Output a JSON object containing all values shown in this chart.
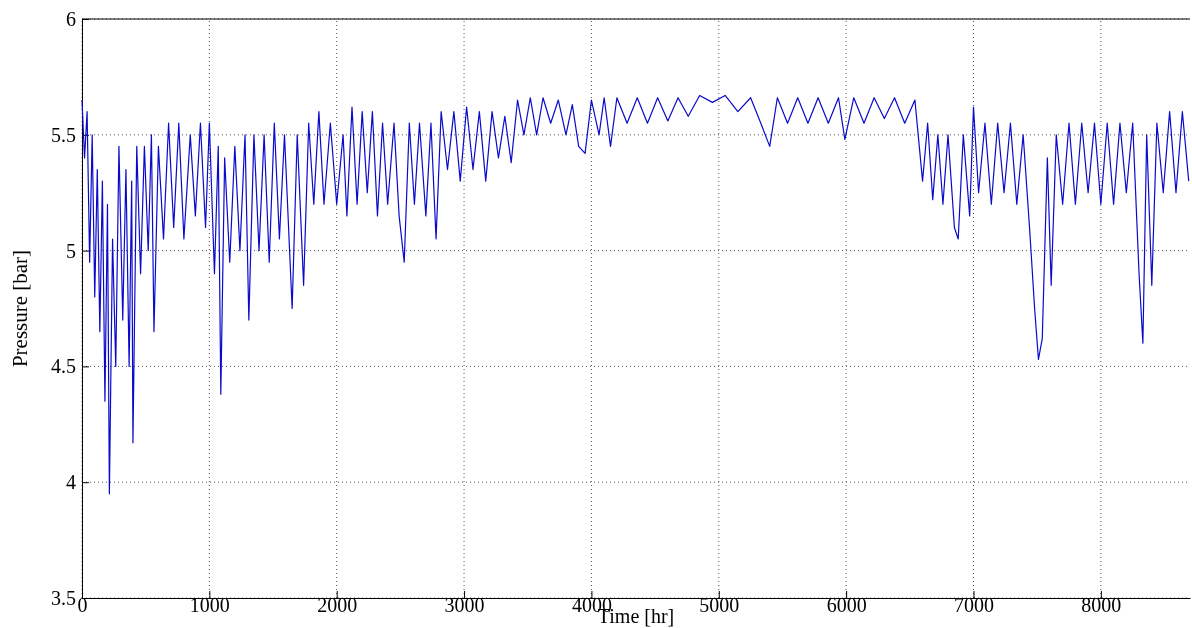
{
  "chart_data": {
    "type": "line",
    "xlabel": "Time [hr]",
    "ylabel": "Pressure [bar]",
    "xlim": [
      0,
      8700
    ],
    "xticks": [
      0,
      1000,
      2000,
      3000,
      4000,
      5000,
      6000,
      7000,
      8000
    ],
    "ylim": [
      3.5,
      6
    ],
    "yticks": [
      3.5,
      4,
      4.5,
      5,
      5.5,
      6
    ],
    "grid": true,
    "line_style": "solid",
    "series": [
      {
        "color": "#0a0acc",
        "x": [
          0,
          20,
          40,
          60,
          80,
          100,
          120,
          140,
          160,
          180,
          200,
          215,
          240,
          265,
          290,
          320,
          345,
          370,
          390,
          400,
          430,
          460,
          490,
          520,
          545,
          565,
          600,
          640,
          680,
          720,
          760,
          800,
          850,
          890,
          930,
          970,
          1000,
          1040,
          1070,
          1090,
          1120,
          1160,
          1200,
          1240,
          1280,
          1310,
          1350,
          1390,
          1430,
          1470,
          1510,
          1550,
          1590,
          1650,
          1690,
          1740,
          1780,
          1820,
          1860,
          1900,
          1950,
          2000,
          2050,
          2080,
          2120,
          2160,
          2200,
          2240,
          2280,
          2320,
          2360,
          2400,
          2450,
          2490,
          2530,
          2570,
          2610,
          2650,
          2700,
          2740,
          2780,
          2820,
          2870,
          2920,
          2970,
          3020,
          3070,
          3120,
          3170,
          3220,
          3270,
          3320,
          3370,
          3420,
          3470,
          3520,
          3570,
          3620,
          3680,
          3740,
          3800,
          3850,
          3900,
          3950,
          4000,
          4060,
          4100,
          4150,
          4200,
          4280,
          4360,
          4440,
          4520,
          4600,
          4680,
          4760,
          4850,
          4950,
          5050,
          5150,
          5250,
          5330,
          5400,
          5460,
          5540,
          5620,
          5700,
          5780,
          5860,
          5940,
          5990,
          6060,
          6140,
          6220,
          6300,
          6380,
          6460,
          6540,
          6600,
          6640,
          6680,
          6720,
          6760,
          6800,
          6850,
          6880,
          6920,
          6970,
          7000,
          7040,
          7090,
          7140,
          7190,
          7240,
          7290,
          7340,
          7390,
          7440,
          7480,
          7510,
          7540,
          7580,
          7610,
          7650,
          7700,
          7750,
          7800,
          7850,
          7900,
          7950,
          8000,
          8050,
          8100,
          8150,
          8200,
          8250,
          8300,
          8330,
          8360,
          8400,
          8440,
          8490,
          8540,
          8590,
          8640,
          8690
        ],
        "values": [
          5.65,
          5.4,
          5.6,
          4.95,
          5.5,
          4.8,
          5.35,
          4.65,
          5.3,
          4.35,
          5.2,
          3.95,
          5.05,
          4.5,
          5.45,
          4.7,
          5.35,
          4.5,
          5.3,
          4.17,
          5.45,
          4.9,
          5.45,
          5.0,
          5.5,
          4.65,
          5.45,
          5.05,
          5.55,
          5.1,
          5.55,
          5.05,
          5.5,
          5.15,
          5.55,
          5.1,
          5.55,
          4.9,
          5.45,
          4.38,
          5.4,
          4.95,
          5.45,
          5.0,
          5.5,
          4.7,
          5.5,
          5.0,
          5.5,
          4.95,
          5.55,
          5.05,
          5.5,
          4.75,
          5.5,
          4.85,
          5.55,
          5.2,
          5.6,
          5.2,
          5.55,
          5.2,
          5.5,
          5.15,
          5.62,
          5.2,
          5.6,
          5.25,
          5.6,
          5.15,
          5.55,
          5.2,
          5.55,
          5.15,
          4.95,
          5.55,
          5.2,
          5.55,
          5.15,
          5.55,
          5.05,
          5.6,
          5.35,
          5.6,
          5.3,
          5.62,
          5.35,
          5.6,
          5.3,
          5.6,
          5.4,
          5.58,
          5.38,
          5.65,
          5.5,
          5.66,
          5.5,
          5.66,
          5.55,
          5.65,
          5.5,
          5.63,
          5.45,
          5.42,
          5.65,
          5.5,
          5.66,
          5.45,
          5.66,
          5.55,
          5.66,
          5.55,
          5.66,
          5.56,
          5.66,
          5.58,
          5.67,
          5.64,
          5.67,
          5.6,
          5.66,
          5.55,
          5.45,
          5.66,
          5.55,
          5.66,
          5.55,
          5.66,
          5.55,
          5.66,
          5.48,
          5.66,
          5.55,
          5.66,
          5.57,
          5.66,
          5.55,
          5.65,
          5.3,
          5.55,
          5.22,
          5.5,
          5.2,
          5.5,
          5.1,
          5.05,
          5.5,
          5.15,
          5.62,
          5.25,
          5.55,
          5.2,
          5.55,
          5.25,
          5.55,
          5.2,
          5.5,
          5.1,
          4.75,
          4.53,
          4.62,
          5.4,
          4.85,
          5.5,
          5.2,
          5.55,
          5.2,
          5.55,
          5.25,
          5.55,
          5.2,
          5.55,
          5.2,
          5.55,
          5.25,
          5.55,
          4.9,
          4.6,
          5.5,
          4.85,
          5.55,
          5.25,
          5.6,
          5.25,
          5.6,
          5.3
        ]
      }
    ]
  }
}
